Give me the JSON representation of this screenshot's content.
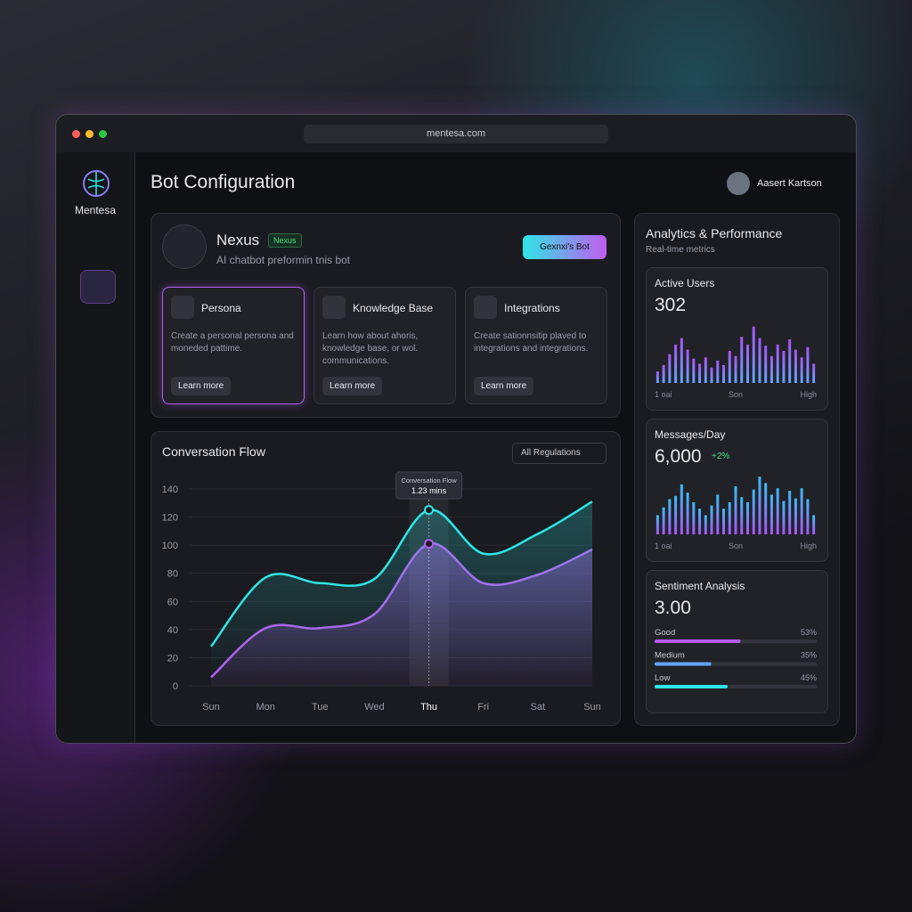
{
  "browser": {
    "url": "mentesa.com"
  },
  "sidebar": {
    "brand": "Mentesa"
  },
  "header": {
    "title": "Bot Configuration",
    "user": "Aasert Kartson"
  },
  "bot": {
    "name": "Nexus",
    "badge": "Nexus",
    "description": "AI chatbot preformin tnis bot",
    "button": "Gexnxi's Bot"
  },
  "cards": [
    {
      "title": "Persona",
      "text": "Create a personal persona and moneded pattime.",
      "button": "Learn more"
    },
    {
      "title": "Knowledge Base",
      "text": "Learn how about ahoris, knowledge base, or wol. communications.",
      "button": "Learn more"
    },
    {
      "title": "Integrations",
      "text": "Create sationnsitip plaved to integrations and integrations.",
      "button": "Learn more"
    }
  ],
  "analytics": {
    "title": "Analytics & Performance",
    "subtitle": "Real-time metrics"
  },
  "chart_data": [
    {
      "type": "line",
      "title": "Conversation Flow",
      "dropdown": "All Regulations",
      "categories": [
        "Sun",
        "Mon",
        "Tue",
        "Wed",
        "Thu",
        "Fri",
        "Sat",
        "Sun"
      ],
      "series": [
        {
          "color": "#2ee6e6",
          "values": [
            28,
            77,
            73,
            76,
            125,
            94,
            108,
            131
          ]
        },
        {
          "color": "#b45cf0",
          "values": [
            6,
            41,
            41,
            51,
            101,
            73,
            79,
            97
          ]
        }
      ],
      "ylim": [
        0,
        140
      ],
      "yticks": [
        0,
        20,
        40,
        60,
        80,
        100,
        120,
        140
      ],
      "grid": true,
      "highlight": 4,
      "tooltip": {
        "title": "Conversation Flow",
        "label": "1.23 mins"
      }
    },
    {
      "type": "bar",
      "title": "Active Users",
      "total": "302",
      "categories": [
        "1 oai",
        null,
        null,
        null,
        null,
        null,
        null,
        null,
        null,
        null,
        null,
        null,
        null,
        "Son",
        null,
        null,
        null,
        null,
        null,
        null,
        null,
        null,
        null,
        null,
        null,
        null,
        "High"
      ],
      "values": [
        18,
        28,
        45,
        60,
        70,
        52,
        38,
        30,
        40,
        24,
        35,
        28,
        50,
        42,
        72,
        60,
        88,
        70,
        58,
        42,
        60,
        50,
        68,
        52,
        40,
        56,
        30
      ],
      "ylim": [
        0,
        100
      ],
      "color": "#a855f7"
    },
    {
      "type": "bar",
      "title": "Messages/Day",
      "total": "6,000",
      "change": "+2%",
      "categories": [
        "1 oai",
        null,
        null,
        null,
        null,
        null,
        null,
        null,
        null,
        null,
        null,
        null,
        null,
        "Son",
        null,
        null,
        null,
        null,
        null,
        null,
        null,
        null,
        null,
        null,
        null,
        null,
        "High"
      ],
      "values": [
        30,
        42,
        55,
        60,
        78,
        65,
        50,
        40,
        30,
        45,
        62,
        40,
        50,
        75,
        58,
        50,
        70,
        90,
        80,
        62,
        72,
        52,
        68,
        56,
        72,
        55,
        30
      ],
      "ylim": [
        0,
        100
      ],
      "color": "#38bdf8"
    },
    {
      "type": "hbar",
      "title": "Sentiment Analysis",
      "total": "3.00",
      "categories": [
        "Good",
        "Medium",
        "Low"
      ],
      "values": [
        53,
        35,
        45
      ],
      "value_labels": [
        "53%",
        "35%",
        "45%"
      ],
      "colors": [
        "#b45cf0",
        "#60a5fa",
        "#2ee6e6"
      ],
      "xlim": [
        0,
        100
      ]
    }
  ]
}
